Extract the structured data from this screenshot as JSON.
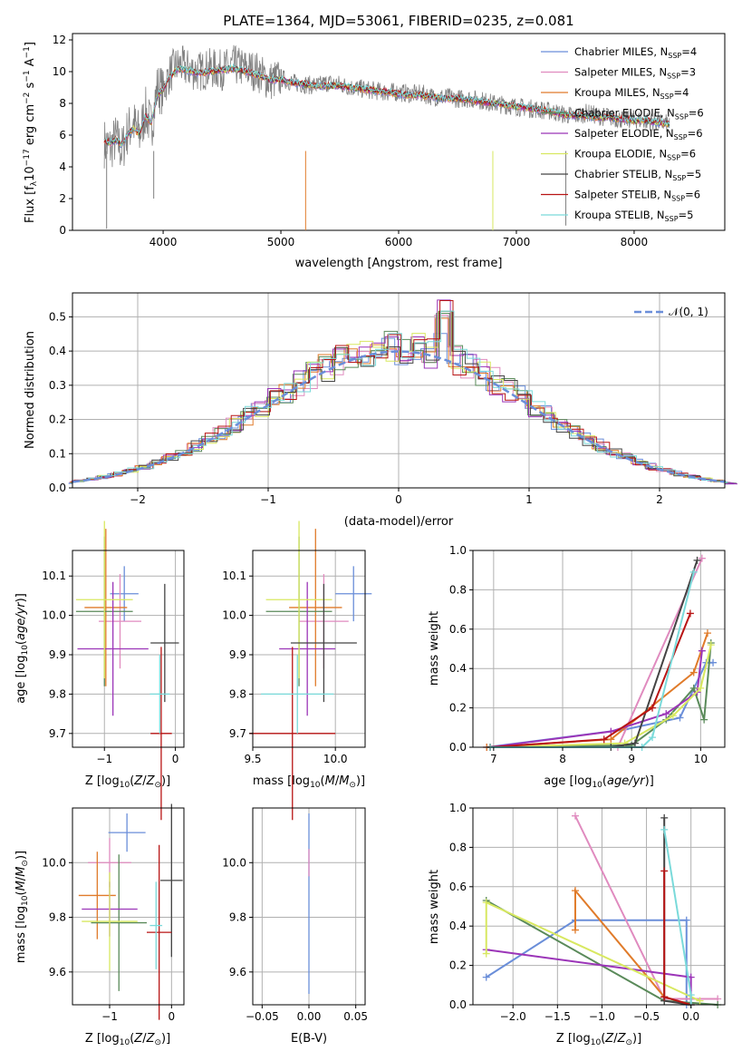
{
  "page": {
    "title": "PLATE=1364, MJD=53061, FIBERID=0235, z=0.081"
  },
  "chart_data": [
    {
      "type": "line",
      "id": "spectrum",
      "xlabel": "wavelength [Angstrom, rest frame]",
      "ylabel_text": "Flux [f",
      "xlim": [
        3230,
        8770
      ],
      "ylim": [
        0,
        12.4
      ],
      "xticks": [
        4000,
        5000,
        6000,
        7000,
        8000
      ],
      "yticks": [
        0,
        2,
        4,
        6,
        8,
        10,
        12
      ],
      "grid": false,
      "legend_position": "upper-right",
      "data_x": [
        3500,
        3550,
        3600,
        3650,
        3700,
        3750,
        3800,
        3850,
        3900,
        3950,
        4000,
        4050,
        4100,
        4150,
        4200,
        4300,
        4400,
        4500,
        4600,
        4700,
        4800,
        4900,
        5000,
        5100,
        5200,
        5300,
        5400,
        5500,
        5600,
        5700,
        5800,
        5900,
        6000,
        6100,
        6200,
        6300,
        6400,
        6500,
        6600,
        6700,
        6800,
        6900,
        7000,
        7100,
        7200,
        7300,
        7400,
        7500,
        7600,
        7700,
        7800,
        7900,
        8000,
        8100,
        8200,
        8300
      ],
      "data_y": [
        5.5,
        5.2,
        5.8,
        5.0,
        6.3,
        6.7,
        6.0,
        7.5,
        6.5,
        9.0,
        8.8,
        9.8,
        10.3,
        10.4,
        10.2,
        10.0,
        10.2,
        10.1,
        10.4,
        10.2,
        10.0,
        9.4,
        9.6,
        9.3,
        9.2,
        9.1,
        9.3,
        9.2,
        9.0,
        8.9,
        8.8,
        8.7,
        8.7,
        8.6,
        8.6,
        8.4,
        8.4,
        8.3,
        8.3,
        8.2,
        8.0,
        7.9,
        7.8,
        7.7,
        7.6,
        7.5,
        7.3,
        7.2,
        7.4,
        7.2,
        7.1,
        7.0,
        7.0,
        6.9,
        6.8,
        6.7
      ],
      "model_y": [
        5.6,
        5.5,
        5.7,
        5.4,
        6.0,
        6.4,
        6.1,
        7.2,
        6.8,
        8.5,
        8.9,
        9.6,
        10.0,
        10.2,
        10.1,
        9.9,
        10.0,
        10.1,
        10.2,
        10.0,
        9.8,
        9.5,
        9.5,
        9.3,
        9.2,
        9.1,
        9.1,
        9.1,
        9.0,
        8.9,
        8.8,
        8.7,
        8.6,
        8.5,
        8.5,
        8.4,
        8.3,
        8.3,
        8.2,
        8.1,
        8.0,
        7.9,
        7.8,
        7.7,
        7.6,
        7.5,
        7.3,
        7.2,
        7.2,
        7.1,
        7.1,
        7.0,
        6.9,
        6.9,
        6.8,
        6.7
      ],
      "series": [
        {
          "name": "Chabrier MILES, N",
          "nssp": "4",
          "color": "#6a8ed9"
        },
        {
          "name": "Salpeter MILES, N",
          "nssp": "3",
          "color": "#e08bbf"
        },
        {
          "name": "Kroupa MILES, N",
          "nssp": "4",
          "color": "#e07b2a"
        },
        {
          "name": "Chabrier ELODIE, N",
          "nssp": "6",
          "color": "#5a8a5a"
        },
        {
          "name": "Salpeter ELODIE, N",
          "nssp": "6",
          "color": "#9b35b8"
        },
        {
          "name": "Kroupa ELODIE, N",
          "nssp": "6",
          "color": "#d8e860"
        },
        {
          "name": "Chabrier STELIB, N",
          "nssp": "5",
          "color": "#444444"
        },
        {
          "name": "Salpeter STELIB, N",
          "nssp": "6",
          "color": "#b81414"
        },
        {
          "name": "Kroupa STELIB, N",
          "nssp": "5",
          "color": "#7adada"
        }
      ]
    },
    {
      "type": "histogram",
      "id": "residuals",
      "xlabel": "(data-model)/error",
      "ylabel": "Normed distribution",
      "xlim": [
        -2.5,
        2.5
      ],
      "ylim": [
        0,
        0.57
      ],
      "xticks": [
        -2,
        -1,
        0,
        1,
        2
      ],
      "yticks": [
        0.0,
        0.1,
        0.2,
        0.3,
        0.4,
        0.5
      ],
      "grid": true,
      "legend_position": "upper-right",
      "normal_label": "𝒩(0, 1)",
      "bin_width": 0.1
    },
    {
      "type": "scatter",
      "id": "age-vs-z",
      "xlabel": "Z [log",
      "ylabel": "age  [log",
      "xlim": [
        -1.45,
        0.12
      ],
      "ylim": [
        9.665,
        10.165
      ],
      "xticks": [
        -1,
        0
      ],
      "yticks": [
        9.7,
        9.8,
        9.9,
        10.0,
        10.1
      ],
      "points": [
        {
          "x": -0.72,
          "y": 10.055,
          "xerr": 0.2,
          "yerr": 0.07
        },
        {
          "x": -0.78,
          "y": 9.985,
          "xerr": 0.3,
          "yerr": 0.12
        },
        {
          "x": -0.98,
          "y": 10.02,
          "xerr": 0.3,
          "yerr": 0.2
        },
        {
          "x": -1.0,
          "y": 10.01,
          "xerr": 0.4,
          "yerr": 0.19
        },
        {
          "x": -0.88,
          "y": 9.915,
          "xerr": 0.5,
          "yerr": 0.17
        },
        {
          "x": -1.0,
          "y": 10.04,
          "xerr": 0.4,
          "yerr": 0.2
        },
        {
          "x": -0.15,
          "y": 9.93,
          "xerr": 0.2,
          "yerr": 0.15
        },
        {
          "x": -0.2,
          "y": 9.7,
          "xerr": 0.15,
          "yerr": 0.22
        },
        {
          "x": -0.22,
          "y": 9.8,
          "xerr": 0.14,
          "yerr": 0.1
        }
      ]
    },
    {
      "type": "scatter",
      "id": "age-vs-mass",
      "xlabel": "mass [log",
      "ylabel": "",
      "xlim": [
        9.5,
        10.18
      ],
      "ylim": [
        9.665,
        10.165
      ],
      "xticks": [
        9.5,
        10.0
      ],
      "yticks": [
        9.7,
        9.8,
        9.9,
        10.0,
        10.1
      ],
      "points": [
        {
          "x": 10.11,
          "y": 10.055,
          "xerr": 0.11,
          "yerr": 0.07
        },
        {
          "x": 9.93,
          "y": 9.985,
          "xerr": 0.15,
          "yerr": 0.12
        },
        {
          "x": 9.88,
          "y": 10.02,
          "xerr": 0.16,
          "yerr": 0.2
        },
        {
          "x": 9.78,
          "y": 10.01,
          "xerr": 0.2,
          "yerr": 0.19
        },
        {
          "x": 9.83,
          "y": 9.915,
          "xerr": 0.17,
          "yerr": 0.17
        },
        {
          "x": 9.78,
          "y": 10.04,
          "xerr": 0.2,
          "yerr": 0.2
        },
        {
          "x": 9.93,
          "y": 9.93,
          "xerr": 0.2,
          "yerr": 0.15
        },
        {
          "x": 9.74,
          "y": 9.7,
          "xerr": 0.26,
          "yerr": 0.22
        },
        {
          "x": 9.77,
          "y": 9.8,
          "xerr": 0.22,
          "yerr": 0.1
        }
      ]
    },
    {
      "type": "line",
      "id": "weight-vs-age",
      "xlabel": "age  [log",
      "ylabel": "mass weight",
      "xlim": [
        6.7,
        10.35
      ],
      "ylim": [
        0,
        1.0
      ],
      "xticks": [
        7,
        8,
        9,
        10
      ],
      "yticks": [
        0.0,
        0.2,
        0.4,
        0.6,
        0.8,
        1.0
      ],
      "grid": true,
      "series": [
        {
          "x": [
            6.9,
            8.9,
            9.7,
            10.08,
            10.18
          ],
          "y": [
            0.0,
            0.09,
            0.15,
            0.43,
            0.43
          ]
        },
        {
          "x": [
            6.9,
            8.8,
            10.02
          ],
          "y": [
            0.0,
            0.0,
            0.96
          ]
        },
        {
          "x": [
            6.9,
            8.7,
            9.9,
            10.1
          ],
          "y": [
            0.0,
            0.04,
            0.38,
            0.58
          ]
        },
        {
          "x": [
            6.95,
            9.0,
            9.5,
            9.9,
            10.05,
            10.15
          ],
          "y": [
            0.0,
            0.01,
            0.14,
            0.3,
            0.14,
            0.53
          ]
        },
        {
          "x": [
            6.95,
            8.7,
            9.5,
            9.95,
            10.02
          ],
          "y": [
            0.0,
            0.08,
            0.17,
            0.28,
            0.49
          ]
        },
        {
          "x": [
            6.95,
            8.9,
            9.6,
            10.0,
            10.15
          ],
          "y": [
            0.0,
            0.02,
            0.16,
            0.3,
            0.52
          ]
        },
        {
          "x": [
            6.95,
            8.7,
            9.05,
            9.95
          ],
          "y": [
            0.0,
            0.0,
            0.02,
            0.95
          ]
        },
        {
          "x": [
            6.95,
            8.6,
            9.3,
            9.85
          ],
          "y": [
            0.0,
            0.04,
            0.2,
            0.68
          ]
        },
        {
          "x": [
            6.95,
            9.15,
            9.3,
            9.9
          ],
          "y": [
            0.0,
            0.0,
            0.05,
            0.89
          ]
        }
      ]
    },
    {
      "type": "scatter",
      "id": "mass-vs-z",
      "xlabel": "Z [log",
      "ylabel": "mass [log",
      "xlim": [
        -1.6,
        0.2
      ],
      "ylim": [
        9.48,
        10.2
      ],
      "xticks": [
        -1,
        0
      ],
      "yticks": [
        9.6,
        9.8,
        10.0
      ],
      "points": [
        {
          "x": -0.72,
          "y": 10.11,
          "xerr": 0.3,
          "yerr": 0.07
        },
        {
          "x": -1.0,
          "y": 10.0,
          "xerr": 0.35,
          "yerr": 0.09
        },
        {
          "x": -1.2,
          "y": 9.88,
          "xerr": 0.3,
          "yerr": 0.16
        },
        {
          "x": -0.85,
          "y": 9.78,
          "xerr": 0.45,
          "yerr": 0.25
        },
        {
          "x": -1.0,
          "y": 9.83,
          "xerr": 0.45,
          "yerr": 0.1
        },
        {
          "x": -1.0,
          "y": 9.785,
          "xerr": 0.45,
          "yerr": 0.18
        },
        {
          "x": 0.0,
          "y": 9.935,
          "xerr": 0.18,
          "yerr": 0.28
        },
        {
          "x": -0.2,
          "y": 9.745,
          "xerr": 0.2,
          "yerr": 0.32
        },
        {
          "x": -0.25,
          "y": 9.77,
          "xerr": 0.1,
          "yerr": 0.16
        }
      ]
    },
    {
      "type": "scatter",
      "id": "mass-vs-ebv",
      "xlabel": "E(B-V)",
      "ylabel": "",
      "xlim": [
        -0.06,
        0.06
      ],
      "ylim": [
        9.48,
        10.2
      ],
      "xticks": [
        -0.05,
        0.0,
        0.05
      ],
      "yticks": [
        9.6,
        9.8,
        10.0
      ],
      "points": [
        {
          "x": 0.0,
          "y": 9.85,
          "xerr": 0.0,
          "yerr": 0.33
        },
        {
          "x": 0.0,
          "y": 10.0,
          "xerr": 0.0,
          "yerr": 0.05
        }
      ]
    },
    {
      "type": "line",
      "id": "weight-vs-z",
      "xlabel": "Z [log",
      "ylabel": "mass weight",
      "xlim": [
        -2.45,
        0.38
      ],
      "ylim": [
        0,
        1.0
      ],
      "xticks": [
        -2.0,
        -1.5,
        -1.0,
        -0.5,
        0.0
      ],
      "yticks": [
        0.0,
        0.2,
        0.4,
        0.6,
        0.8,
        1.0
      ],
      "grid": true,
      "series": [
        {
          "x": [
            -2.3,
            -1.3,
            -0.05,
            -0.05
          ],
          "y": [
            0.14,
            0.43,
            0.43,
            0.0
          ]
        },
        {
          "x": [
            -1.3,
            -0.3,
            0.3
          ],
          "y": [
            0.96,
            0.03,
            0.03
          ]
        },
        {
          "x": [
            -1.3,
            -1.3,
            -0.3,
            0.0
          ],
          "y": [
            0.38,
            0.58,
            0.04,
            0.0
          ]
        },
        {
          "x": [
            -2.3,
            -0.3,
            0.3
          ],
          "y": [
            0.53,
            0.02,
            0.0
          ]
        },
        {
          "x": [
            -2.3,
            0.0,
            0.0
          ],
          "y": [
            0.28,
            0.14,
            0.0
          ]
        },
        {
          "x": [
            -2.3,
            -2.3,
            0.1
          ],
          "y": [
            0.26,
            0.52,
            0.02
          ]
        },
        {
          "x": [
            -0.3,
            -0.3,
            0.0
          ],
          "y": [
            0.95,
            0.02,
            0.0
          ]
        },
        {
          "x": [
            -0.3,
            -0.3,
            0.0
          ],
          "y": [
            0.68,
            0.04,
            0.0
          ]
        },
        {
          "x": [
            -0.3,
            0.0,
            0.0
          ],
          "y": [
            0.89,
            0.05,
            0.0
          ]
        }
      ]
    }
  ]
}
